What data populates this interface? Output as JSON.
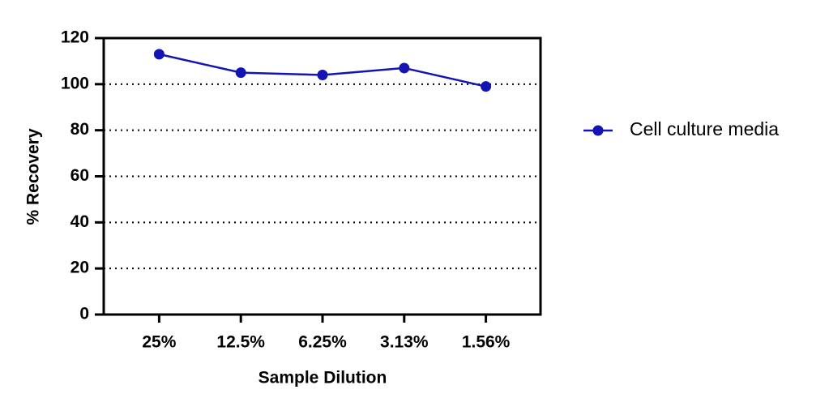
{
  "chart_data": {
    "type": "line",
    "x_label": "Sample Dilution",
    "y_label": "% Recovery",
    "categories": [
      "25%",
      "12.5%",
      "6.25%",
      "3.13%",
      "1.56%"
    ],
    "series": [
      {
        "name": "Cell culture media",
        "color": "#1414b4",
        "values": [
          113,
          105,
          104,
          107,
          99
        ]
      }
    ],
    "ylim": [
      0,
      120
    ],
    "yticks": [
      0,
      20,
      40,
      60,
      80,
      100,
      120
    ],
    "grid": true,
    "legend": "right"
  }
}
